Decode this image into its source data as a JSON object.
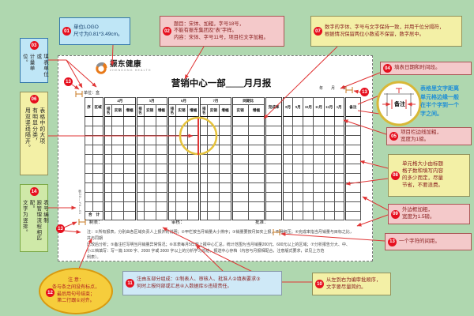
{
  "colors": {
    "background": "#afd7af",
    "badge_red": "#e60f1e",
    "arrow_red": "#e03434",
    "highlight_circle_yellow": "#e6c33c",
    "blue_hint_text": "#1f8fd6",
    "logo_orange": "#e87a1a"
  },
  "logo": {
    "name": "振东健康",
    "sub": "ZHENDONG HEALTH"
  },
  "form": {
    "title": "营销中心一部____月月报",
    "unit_note": "单位：盒",
    "date_note": "年　　月　　日",
    "form_no": "表ZD—YX—01",
    "footer": [
      "制表：",
      "审核：",
      "批准："
    ],
    "notes": "注：①所有报表，分别由各区域负责人上报并附说明；②甲栏按当月销量大小排序；③销量要按月如实上报，不得积压；④完成率指当月销量与目标之比，并与同期\n比较后分析；⑤备注栏写明当月销量异常情况；⑥本表每月5日前上报中心汇总，统计范围为当月销量200元、600元以上的区域；⑦分析报告分大、中、\n小三档填写：写一篇 1000 字、2000 字或 3000 字以上的分析学习总结，报送中心存档（内容与月报相配合，注意版式要求，详见上方范\n例表）。",
    "table": {
      "columns": [
        {
          "label": "序"
        },
        {
          "label": "区域"
        },
        {
          "label": "4月",
          "children": [
            "排名",
            "实销",
            "增幅"
          ],
          "sep": true
        },
        {
          "label": "5月",
          "children": [
            "排名",
            "实销",
            "增幅"
          ],
          "sep": true
        },
        {
          "label": "6月",
          "children": [
            "排名",
            "实销",
            "增幅"
          ],
          "sep": true
        },
        {
          "label": "7月",
          "children": [
            "排名",
            "实销",
            "增幅"
          ],
          "sep": true
        },
        {
          "label": "同期比",
          "children": [
            "实销",
            "增幅"
          ],
          "sep": true
        },
        {
          "label": "完成率",
          "sep": true
        },
        {
          "label": "8月",
          "sep": true
        },
        {
          "label": "9月"
        },
        {
          "label": "10月"
        },
        {
          "label": "11月"
        },
        {
          "label": "12月"
        },
        {
          "label": "1月"
        },
        {
          "label": "备注",
          "sep": true
        }
      ],
      "empty_row_count": 10,
      "total_label": "合　计"
    }
  },
  "hints": {
    "cell_padding": "表格里文字距离\n单元格边缘一般\n在半个字到一个\n字之间。"
  },
  "magnifier": {
    "cell_text": "备注"
  },
  "floating_badges": [
    "13",
    "13",
    "13"
  ],
  "callouts": [
    {
      "num": "01",
      "text": "单位LOGO\n尺寸为0.81*3.49cm。"
    },
    {
      "num": "02",
      "text": "题目：宋体、加粗，字号18号，\n不能有振东集团及“表”字样。\n内容：宋体、字号11号，项目栏文字加粗。"
    },
    {
      "num": "03",
      "text": "填表单位或\n计量单位。"
    },
    {
      "num": "04",
      "text": "填表日期和时间段。"
    },
    {
      "num": "05",
      "text": "项目栏边线加粗，\n宽度为1磅。"
    },
    {
      "num": "06",
      "text": "表格中的大项\n有明显分类，\n用双竖线隔开。"
    },
    {
      "num": "07",
      "text": "数字的字体、字号与文字保持一致，并用千位分隔符，\n根据情况保留两位小数或不保留，数字居中。"
    },
    {
      "num": "08",
      "text": "单元格大小由标题\n格子数和填写内容\n的多少而定，尽量\n节省，不要浪费。"
    },
    {
      "num": "09",
      "text": "外边框加粗，\n宽度为1.5磅。"
    },
    {
      "num": "10",
      "text": "从左到右为编审批顺序，\n文字要尽量简约。"
    },
    {
      "num": "11",
      "text": "注由五部分组成：①制表人、审核人、批准人②填表要求③\n何时上报何部或汇总④入数据库⑤违规责任。"
    },
    {
      "num": "12",
      "text": "注 意：\n条与条之间没有标点，\n最后用句号结束；\n第二行跟①对齐。"
    },
    {
      "num": "13",
      "text": "一个字符的间距。"
    },
    {
      "num": "14",
      "text": "表号编制\n跟管理流程相匹配。\n文字为竖排。"
    }
  ]
}
